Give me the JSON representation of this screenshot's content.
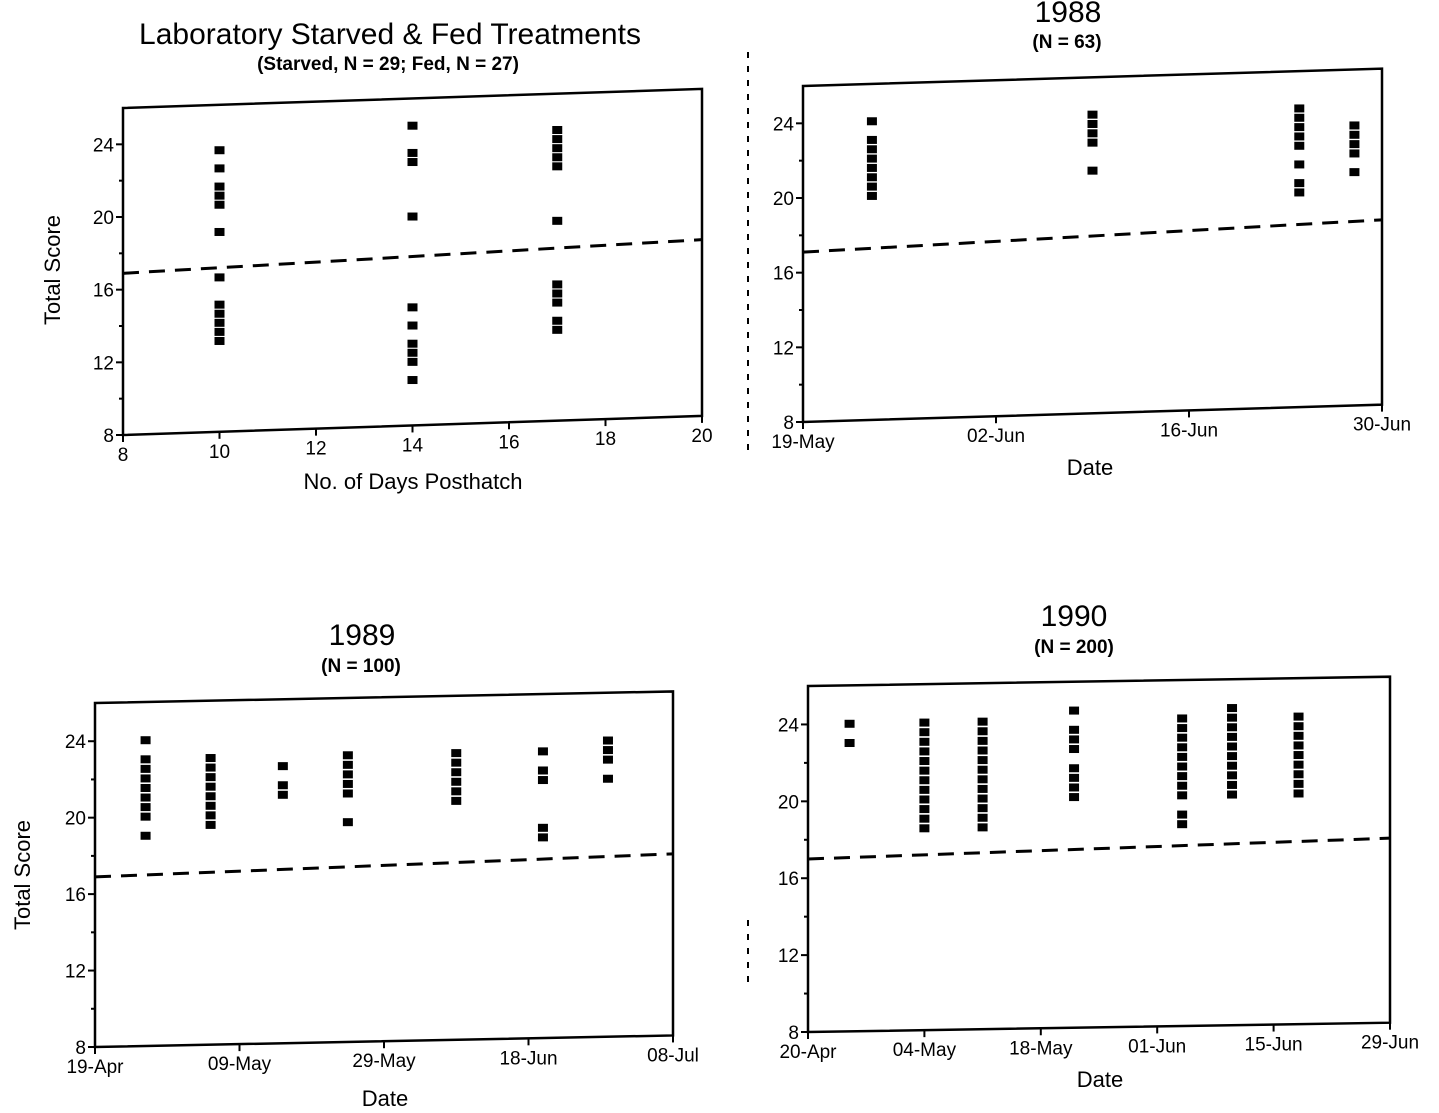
{
  "figure": {
    "panels": [
      {
        "id": "lab",
        "title": "Laboratory Starved & Fed Treatments",
        "subtitle": "(Starved, N = 29; Fed, N = 27)",
        "xlabel": "No. of Days Posthatch",
        "ylabel": "Total Score"
      },
      {
        "id": "y1988",
        "title": "1988",
        "subtitle": "(N = 63)",
        "xlabel": "Date",
        "ylabel": ""
      },
      {
        "id": "y1989",
        "title": "1989",
        "subtitle": "(N = 100)",
        "xlabel": "Date",
        "ylabel": "Total Score"
      },
      {
        "id": "y1990",
        "title": "1990",
        "subtitle": "(N = 200)",
        "xlabel": "Date",
        "ylabel": ""
      }
    ]
  },
  "chart_data": [
    {
      "type": "scatter",
      "title": "Laboratory Starved & Fed Treatments",
      "subtitle": "(Starved, N = 29; Fed, N = 27)",
      "xlabel": "No. of Days Posthatch",
      "ylabel": "Total Score",
      "xlim": [
        8,
        20
      ],
      "ylim": [
        8,
        26
      ],
      "x_ticks": [
        "8",
        "10",
        "12",
        "14",
        "16",
        "18",
        "20"
      ],
      "y_ticks": [
        "8",
        "12",
        "16",
        "20",
        "24"
      ],
      "grid": false,
      "points": [
        {
          "x": 10,
          "y": 23.5
        },
        {
          "x": 10,
          "y": 22.5
        },
        {
          "x": 10,
          "y": 21.5
        },
        {
          "x": 10,
          "y": 21
        },
        {
          "x": 10,
          "y": 20.5
        },
        {
          "x": 10,
          "y": 19
        },
        {
          "x": 10,
          "y": 16.5
        },
        {
          "x": 10,
          "y": 15
        },
        {
          "x": 10,
          "y": 14.5
        },
        {
          "x": 10,
          "y": 14
        },
        {
          "x": 10,
          "y": 13.5
        },
        {
          "x": 10,
          "y": 13
        },
        {
          "x": 14,
          "y": 24.5
        },
        {
          "x": 14,
          "y": 23
        },
        {
          "x": 14,
          "y": 22.5
        },
        {
          "x": 14,
          "y": 19.5
        },
        {
          "x": 14,
          "y": 14.5
        },
        {
          "x": 14,
          "y": 13.5
        },
        {
          "x": 14,
          "y": 12.5
        },
        {
          "x": 14,
          "y": 12
        },
        {
          "x": 14,
          "y": 11.5
        },
        {
          "x": 14,
          "y": 10.5
        },
        {
          "x": 17,
          "y": 24
        },
        {
          "x": 17,
          "y": 23.5
        },
        {
          "x": 17,
          "y": 23
        },
        {
          "x": 17,
          "y": 22.5
        },
        {
          "x": 17,
          "y": 22
        },
        {
          "x": 17,
          "y": 19
        },
        {
          "x": 17,
          "y": 15.5
        },
        {
          "x": 17,
          "y": 15
        },
        {
          "x": 17,
          "y": 14.5
        },
        {
          "x": 17,
          "y": 13.5
        },
        {
          "x": 17,
          "y": 13
        }
      ],
      "dashed_line": {
        "x": [
          8,
          20
        ],
        "y": [
          16.9,
          17.7
        ]
      }
    },
    {
      "type": "scatter",
      "title": "1988",
      "subtitle": "(N = 63)",
      "xlabel": "Date",
      "ylabel": "",
      "xlim": [
        "19-May",
        "30-Jun"
      ],
      "ylim": [
        8,
        26
      ],
      "x_ticks": [
        "19-May",
        "02-Jun",
        "16-Jun",
        "30-Jun"
      ],
      "y_ticks": [
        "8",
        "12",
        "16",
        "20",
        "24"
      ],
      "grid": false,
      "points": [
        {
          "x": "24-May",
          "y": 24
        },
        {
          "x": "24-May",
          "y": 23
        },
        {
          "x": "24-May",
          "y": 22.5
        },
        {
          "x": "24-May",
          "y": 22
        },
        {
          "x": "24-May",
          "y": 21.5
        },
        {
          "x": "24-May",
          "y": 21
        },
        {
          "x": "24-May",
          "y": 20.5
        },
        {
          "x": "24-May",
          "y": 20
        },
        {
          "x": "09-Jun",
          "y": 24
        },
        {
          "x": "09-Jun",
          "y": 23.5
        },
        {
          "x": "09-Jun",
          "y": 23
        },
        {
          "x": "09-Jun",
          "y": 22.5
        },
        {
          "x": "09-Jun",
          "y": 21
        },
        {
          "x": "24-Jun",
          "y": 24
        },
        {
          "x": "24-Jun",
          "y": 23.5
        },
        {
          "x": "24-Jun",
          "y": 23
        },
        {
          "x": "24-Jun",
          "y": 22.5
        },
        {
          "x": "24-Jun",
          "y": 22
        },
        {
          "x": "24-Jun",
          "y": 21
        },
        {
          "x": "24-Jun",
          "y": 20
        },
        {
          "x": "24-Jun",
          "y": 19.5
        },
        {
          "x": "28-Jun",
          "y": 23
        },
        {
          "x": "28-Jun",
          "y": 22.5
        },
        {
          "x": "28-Jun",
          "y": 22
        },
        {
          "x": "28-Jun",
          "y": 21.5
        },
        {
          "x": "28-Jun",
          "y": 20.5
        }
      ],
      "dashed_line": {
        "x": [
          "19-May",
          "30-Jun"
        ],
        "y": [
          17.1,
          17.9
        ]
      }
    },
    {
      "type": "scatter",
      "title": "1989",
      "subtitle": "(N = 100)",
      "xlabel": "Date",
      "ylabel": "Total Score",
      "xlim": [
        "19-Apr",
        "08-Jul"
      ],
      "ylim": [
        8,
        26
      ],
      "x_ticks": [
        "19-Apr",
        "09-May",
        "29-May",
        "18-Jun",
        "08-Jul"
      ],
      "y_ticks": [
        "8",
        "12",
        "16",
        "20",
        "24"
      ],
      "grid": false,
      "points": [
        {
          "x": "26-Apr",
          "y": 24
        },
        {
          "x": "26-Apr",
          "y": 23
        },
        {
          "x": "26-Apr",
          "y": 22.5
        },
        {
          "x": "26-Apr",
          "y": 22
        },
        {
          "x": "26-Apr",
          "y": 21.5
        },
        {
          "x": "26-Apr",
          "y": 21
        },
        {
          "x": "26-Apr",
          "y": 20.5
        },
        {
          "x": "26-Apr",
          "y": 20
        },
        {
          "x": "26-Apr",
          "y": 19
        },
        {
          "x": "05-May",
          "y": 23
        },
        {
          "x": "05-May",
          "y": 22.5
        },
        {
          "x": "05-May",
          "y": 22
        },
        {
          "x": "05-May",
          "y": 21.5
        },
        {
          "x": "05-May",
          "y": 21
        },
        {
          "x": "05-May",
          "y": 20.5
        },
        {
          "x": "05-May",
          "y": 20
        },
        {
          "x": "05-May",
          "y": 19.5
        },
        {
          "x": "15-May",
          "y": 22.5
        },
        {
          "x": "15-May",
          "y": 21.5
        },
        {
          "x": "15-May",
          "y": 21
        },
        {
          "x": "24-May",
          "y": 23
        },
        {
          "x": "24-May",
          "y": 22.5
        },
        {
          "x": "24-May",
          "y": 22
        },
        {
          "x": "24-May",
          "y": 21.5
        },
        {
          "x": "24-May",
          "y": 21
        },
        {
          "x": "24-May",
          "y": 19.5
        },
        {
          "x": "08-Jun",
          "y": 23
        },
        {
          "x": "08-Jun",
          "y": 22.5
        },
        {
          "x": "08-Jun",
          "y": 22
        },
        {
          "x": "08-Jun",
          "y": 21.5
        },
        {
          "x": "08-Jun",
          "y": 21
        },
        {
          "x": "08-Jun",
          "y": 20.5
        },
        {
          "x": "20-Jun",
          "y": 23
        },
        {
          "x": "20-Jun",
          "y": 22
        },
        {
          "x": "20-Jun",
          "y": 21.5
        },
        {
          "x": "20-Jun",
          "y": 19
        },
        {
          "x": "20-Jun",
          "y": 18.5
        },
        {
          "x": "29-Jun",
          "y": 23.5
        },
        {
          "x": "29-Jun",
          "y": 23
        },
        {
          "x": "29-Jun",
          "y": 22.5
        },
        {
          "x": "29-Jun",
          "y": 21.5
        }
      ],
      "dashed_line": {
        "x": [
          "19-Apr",
          "08-Jul"
        ],
        "y": [
          16.9,
          17.5
        ]
      }
    },
    {
      "type": "scatter",
      "title": "1990",
      "subtitle": "(N = 200)",
      "xlabel": "Date",
      "ylabel": "",
      "xlim": [
        "20-Apr",
        "29-Jun"
      ],
      "ylim": [
        8,
        26
      ],
      "x_ticks": [
        "20-Apr",
        "04-May",
        "18-May",
        "01-Jun",
        "15-Jun",
        "29-Jun"
      ],
      "y_ticks": [
        "8",
        "12",
        "16",
        "20",
        "24"
      ],
      "grid": false,
      "points": [
        {
          "x": "25-Apr",
          "y": 24
        },
        {
          "x": "25-Apr",
          "y": 23
        },
        {
          "x": "04-May",
          "y": 24
        },
        {
          "x": "04-May",
          "y": 23.5
        },
        {
          "x": "04-May",
          "y": 23
        },
        {
          "x": "04-May",
          "y": 22.5
        },
        {
          "x": "04-May",
          "y": 22
        },
        {
          "x": "04-May",
          "y": 21.5
        },
        {
          "x": "04-May",
          "y": 21
        },
        {
          "x": "04-May",
          "y": 20.5
        },
        {
          "x": "04-May",
          "y": 20
        },
        {
          "x": "04-May",
          "y": 19.5
        },
        {
          "x": "04-May",
          "y": 19
        },
        {
          "x": "04-May",
          "y": 18.5
        },
        {
          "x": "11-May",
          "y": 24
        },
        {
          "x": "11-May",
          "y": 23.5
        },
        {
          "x": "11-May",
          "y": 23
        },
        {
          "x": "11-May",
          "y": 22.5
        },
        {
          "x": "11-May",
          "y": 22
        },
        {
          "x": "11-May",
          "y": 21.5
        },
        {
          "x": "11-May",
          "y": 21
        },
        {
          "x": "11-May",
          "y": 20.5
        },
        {
          "x": "11-May",
          "y": 20
        },
        {
          "x": "11-May",
          "y": 19.5
        },
        {
          "x": "11-May",
          "y": 19
        },
        {
          "x": "11-May",
          "y": 18.5
        },
        {
          "x": "22-May",
          "y": 24.5
        },
        {
          "x": "22-May",
          "y": 23.5
        },
        {
          "x": "22-May",
          "y": 23
        },
        {
          "x": "22-May",
          "y": 22.5
        },
        {
          "x": "22-May",
          "y": 21.5
        },
        {
          "x": "22-May",
          "y": 21
        },
        {
          "x": "22-May",
          "y": 20.5
        },
        {
          "x": "22-May",
          "y": 20
        },
        {
          "x": "04-Jun",
          "y": 24
        },
        {
          "x": "04-Jun",
          "y": 23.5
        },
        {
          "x": "04-Jun",
          "y": 23
        },
        {
          "x": "04-Jun",
          "y": 22.5
        },
        {
          "x": "04-Jun",
          "y": 22
        },
        {
          "x": "04-Jun",
          "y": 21.5
        },
        {
          "x": "04-Jun",
          "y": 21
        },
        {
          "x": "04-Jun",
          "y": 20.5
        },
        {
          "x": "04-Jun",
          "y": 20
        },
        {
          "x": "04-Jun",
          "y": 19
        },
        {
          "x": "04-Jun",
          "y": 18.5
        },
        {
          "x": "10-Jun",
          "y": 24.5
        },
        {
          "x": "10-Jun",
          "y": 24
        },
        {
          "x": "10-Jun",
          "y": 23.5
        },
        {
          "x": "10-Jun",
          "y": 23
        },
        {
          "x": "10-Jun",
          "y": 22.5
        },
        {
          "x": "10-Jun",
          "y": 22
        },
        {
          "x": "10-Jun",
          "y": 21.5
        },
        {
          "x": "10-Jun",
          "y": 21
        },
        {
          "x": "10-Jun",
          "y": 20.5
        },
        {
          "x": "10-Jun",
          "y": 20
        },
        {
          "x": "18-Jun",
          "y": 24
        },
        {
          "x": "18-Jun",
          "y": 23.5
        },
        {
          "x": "18-Jun",
          "y": 23
        },
        {
          "x": "18-Jun",
          "y": 22.5
        },
        {
          "x": "18-Jun",
          "y": 22
        },
        {
          "x": "18-Jun",
          "y": 21.5
        },
        {
          "x": "18-Jun",
          "y": 21
        },
        {
          "x": "18-Jun",
          "y": 20.5
        },
        {
          "x": "18-Jun",
          "y": 20
        }
      ],
      "dashed_line": {
        "x": [
          "20-Apr",
          "29-Jun"
        ],
        "y": [
          17,
          17.6
        ]
      }
    }
  ]
}
